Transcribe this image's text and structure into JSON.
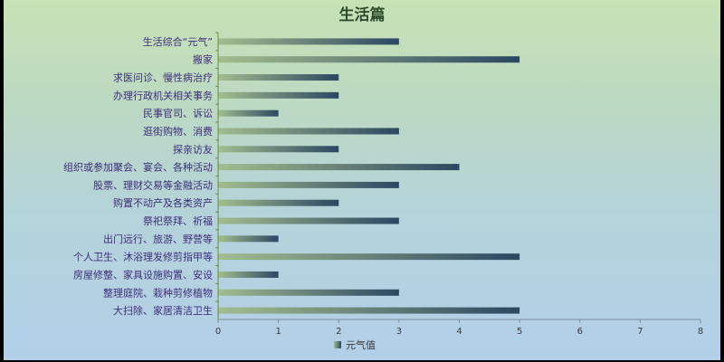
{
  "chart_data": {
    "type": "bar",
    "orientation": "horizontal",
    "title": "生活篇",
    "categories": [
      "生活综合“元气”",
      "搬家",
      "求医问诊、慢性病治疗",
      "办理行政机关相关事务",
      "民事官司、诉讼",
      "逛街购物、消费",
      "探亲访友",
      "组织或参加聚会、宴会、各种活动",
      "股票、理财交易等金融活动",
      "购置不动产及各类资产",
      "祭祀祭拜、祈福",
      "出门远行、旅游、野营等",
      "个人卫生、沐浴理发修剪指甲等",
      "房屋修整、家具设施购置、安设",
      "整理庭院、栽种剪修植物",
      "大扫除、家居清洁卫生"
    ],
    "series": [
      {
        "name": "元气值",
        "values": [
          3,
          5,
          2,
          2,
          1,
          3,
          2,
          4,
          3,
          2,
          3,
          1,
          5,
          1,
          3,
          5
        ]
      }
    ],
    "xlim": [
      0,
      8
    ],
    "xticks": [
      0,
      1,
      2,
      3,
      4,
      5,
      6,
      7,
      8
    ],
    "grid": false,
    "legend": "bottom",
    "colors": {
      "bar_start": "#a3bd8f",
      "bar_end": "#2c4762",
      "axis": "#6b8f3e",
      "label": "#3c2d78"
    }
  }
}
